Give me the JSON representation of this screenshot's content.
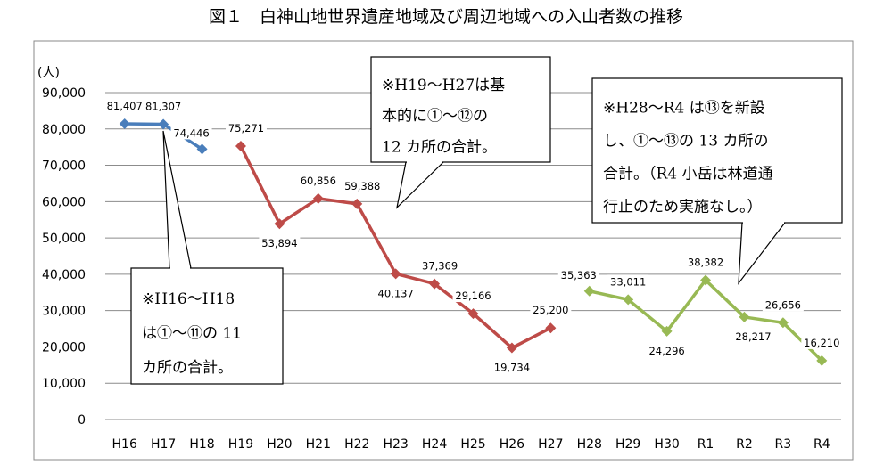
{
  "chart_data": {
    "type": "line",
    "title": "図１　白神山地世界遺産地域及び周辺地域への入山者数の推移",
    "ylabel": "(人)",
    "xlabel": "",
    "ylim": [
      0,
      90000
    ],
    "yticks": [
      0,
      10000,
      20000,
      30000,
      40000,
      50000,
      60000,
      70000,
      80000,
      90000
    ],
    "ytick_labels": [
      "0",
      "10,000",
      "20,000",
      "30,000",
      "40,000",
      "50,000",
      "60,000",
      "70,000",
      "80,000",
      "90,000"
    ],
    "grid": true,
    "categories": [
      "H16",
      "H17",
      "H18",
      "H19",
      "H20",
      "H21",
      "H22",
      "H23",
      "H24",
      "H25",
      "H26",
      "H27",
      "H28",
      "H29",
      "H30",
      "R1",
      "R2",
      "R3",
      "R4"
    ],
    "series": [
      {
        "name": "H16-H18",
        "color": "#4a7ebb",
        "values": [
          81407,
          81307,
          74446,
          null,
          null,
          null,
          null,
          null,
          null,
          null,
          null,
          null,
          null,
          null,
          null,
          null,
          null,
          null,
          null
        ],
        "labels": [
          "81,407",
          "81,307",
          "74,446",
          null,
          null,
          null,
          null,
          null,
          null,
          null,
          null,
          null,
          null,
          null,
          null,
          null,
          null,
          null,
          null
        ]
      },
      {
        "name": "H19-H27",
        "color": "#be4b48",
        "values": [
          null,
          null,
          null,
          75271,
          53894,
          60856,
          59388,
          40137,
          37369,
          29166,
          19734,
          25200,
          null,
          null,
          null,
          null,
          null,
          null,
          null
        ],
        "labels": [
          null,
          null,
          null,
          "75,271",
          "53,894",
          "60,856",
          "59,388",
          "40,137",
          "37,369",
          "29,166",
          "19,734",
          "25,200",
          null,
          null,
          null,
          null,
          null,
          null,
          null
        ]
      },
      {
        "name": "H28-R4",
        "color": "#98b954",
        "values": [
          null,
          null,
          null,
          null,
          null,
          null,
          null,
          null,
          null,
          null,
          null,
          null,
          35363,
          33011,
          24296,
          38382,
          28217,
          26656,
          16210
        ],
        "labels": [
          null,
          null,
          null,
          null,
          null,
          null,
          null,
          null,
          null,
          null,
          null,
          null,
          "35,363",
          "33,011",
          "24,296",
          "38,382",
          "28,217",
          "26,656",
          "16,210"
        ]
      }
    ],
    "annotations": [
      {
        "name": "note-h16-h18",
        "lines": [
          "※H16～H18",
          "は①～⑪の 11",
          "カ所の合計。"
        ]
      },
      {
        "name": "note-h19-h27",
        "lines": [
          "※H19～H27は基",
          "本的に①～⑫の",
          "12 カ所の合計。"
        ]
      },
      {
        "name": "note-h28-r4",
        "lines": [
          "※H28～R4 は⑬を新設",
          "し、①～⑬の 13 カ所の",
          "合計。（R4 小岳は林道通",
          "行止のため実施なし。）"
        ]
      }
    ]
  }
}
